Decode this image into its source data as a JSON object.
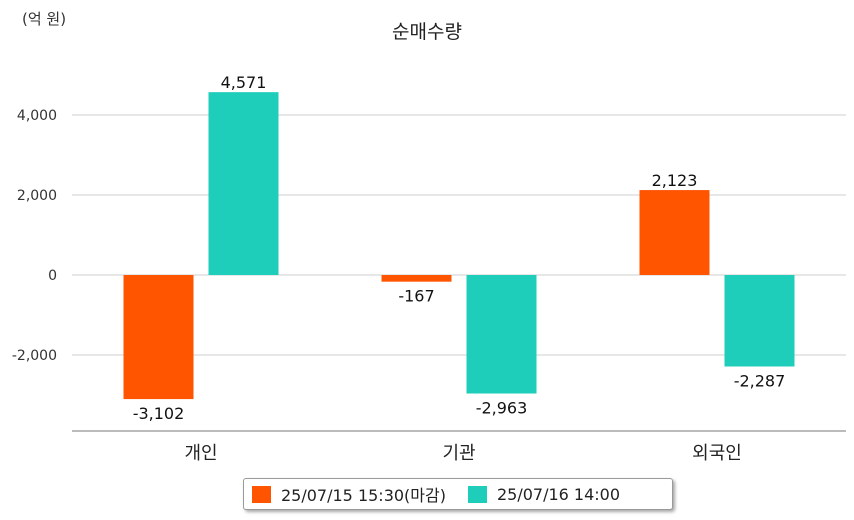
{
  "chart_data": {
    "type": "bar",
    "title": "순매수량",
    "unit_label": "(억 원)",
    "categories": [
      "개인",
      "기관",
      "외국인"
    ],
    "series": [
      {
        "name": "25/07/15 15:30(마감)",
        "color": "#ff5500",
        "values": [
          -3102,
          -167,
          2123
        ],
        "labels": [
          "-3,102",
          "-167",
          "2,123"
        ]
      },
      {
        "name": "25/07/16 14:00",
        "color": "#1ecdba",
        "values": [
          4571,
          -2963,
          -2287
        ],
        "labels": [
          "4,571",
          "-2,963",
          "-2,287"
        ]
      }
    ],
    "yticks": [
      4000,
      2000,
      0,
      -2000
    ],
    "ytick_labels": [
      "4,000",
      "2,000",
      "0",
      "-2,000"
    ],
    "grid": true,
    "legend_position": "bottom"
  }
}
